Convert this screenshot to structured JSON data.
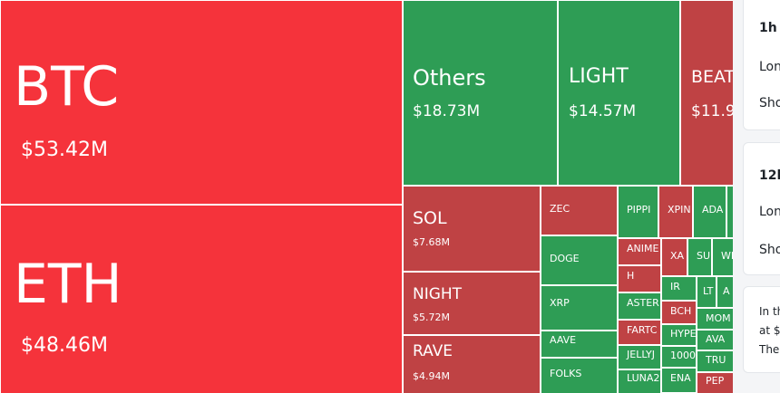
{
  "colors": {
    "red": "#f5333b",
    "dark_red": "#bf4244",
    "green": "#2e9d55"
  },
  "tiles": [
    {
      "name": "BTC",
      "value": "$53.42M",
      "color": "red"
    },
    {
      "name": "ETH",
      "value": "$48.46M",
      "color": "red"
    },
    {
      "name": "Others",
      "value": "$18.73M",
      "color": "green"
    },
    {
      "name": "LIGHT",
      "value": "$14.57M",
      "color": "green"
    },
    {
      "name": "BEAT",
      "value": "$11.9",
      "color": "dark_red"
    },
    {
      "name": "SOL",
      "value": "$7.68M",
      "color": "dark_red"
    },
    {
      "name": "NIGHT",
      "value": "$5.72M",
      "color": "dark_red"
    },
    {
      "name": "RAVE",
      "value": "$4.94M",
      "color": "dark_red"
    },
    {
      "name": "ZEC",
      "value": "",
      "color": "dark_red"
    },
    {
      "name": "DOGE",
      "value": "",
      "color": "green"
    },
    {
      "name": "XRP",
      "value": "",
      "color": "green"
    },
    {
      "name": "AAVE",
      "value": "",
      "color": "green"
    },
    {
      "name": "FOLKS",
      "value": "",
      "color": "green"
    },
    {
      "name": "PIPPI",
      "value": "",
      "color": "green"
    },
    {
      "name": "XPIN",
      "value": "",
      "color": "dark_red"
    },
    {
      "name": "ADA",
      "value": "",
      "color": "green"
    },
    {
      "name": "",
      "value": "",
      "color": "green"
    },
    {
      "name": "ANIME",
      "value": "",
      "color": "dark_red"
    },
    {
      "name": "XA",
      "value": "",
      "color": "dark_red"
    },
    {
      "name": "SU",
      "value": "",
      "color": "green"
    },
    {
      "name": "WI",
      "value": "",
      "color": "green"
    },
    {
      "name": "H",
      "value": "",
      "color": "dark_red"
    },
    {
      "name": "IR",
      "value": "",
      "color": "green"
    },
    {
      "name": "LT",
      "value": "",
      "color": "green"
    },
    {
      "name": "A",
      "value": "",
      "color": "green"
    },
    {
      "name": "ASTER",
      "value": "",
      "color": "green"
    },
    {
      "name": "BCH",
      "value": "",
      "color": "dark_red"
    },
    {
      "name": "MOM",
      "value": "",
      "color": "green"
    },
    {
      "name": "FARTC",
      "value": "",
      "color": "dark_red"
    },
    {
      "name": "HYPE",
      "value": "",
      "color": "green"
    },
    {
      "name": "AVA",
      "value": "",
      "color": "green"
    },
    {
      "name": "JELLYJ",
      "value": "",
      "color": "green"
    },
    {
      "name": "1000",
      "value": "",
      "color": "green"
    },
    {
      "name": "TRU",
      "value": "",
      "color": "green"
    },
    {
      "name": "LUNA2",
      "value": "",
      "color": "green"
    },
    {
      "name": "ENA",
      "value": "",
      "color": "green"
    },
    {
      "name": "PEP",
      "value": "",
      "color": "dark_red"
    }
  ],
  "side": {
    "card_1h": {
      "title": "1h",
      "long": "Lon",
      "short": "Sho"
    },
    "card_12h": {
      "title": "12h",
      "long": "Lon",
      "short": "Sho"
    },
    "info": {
      "line1": "In th",
      "line2": "at $",
      "line3": "The"
    }
  }
}
